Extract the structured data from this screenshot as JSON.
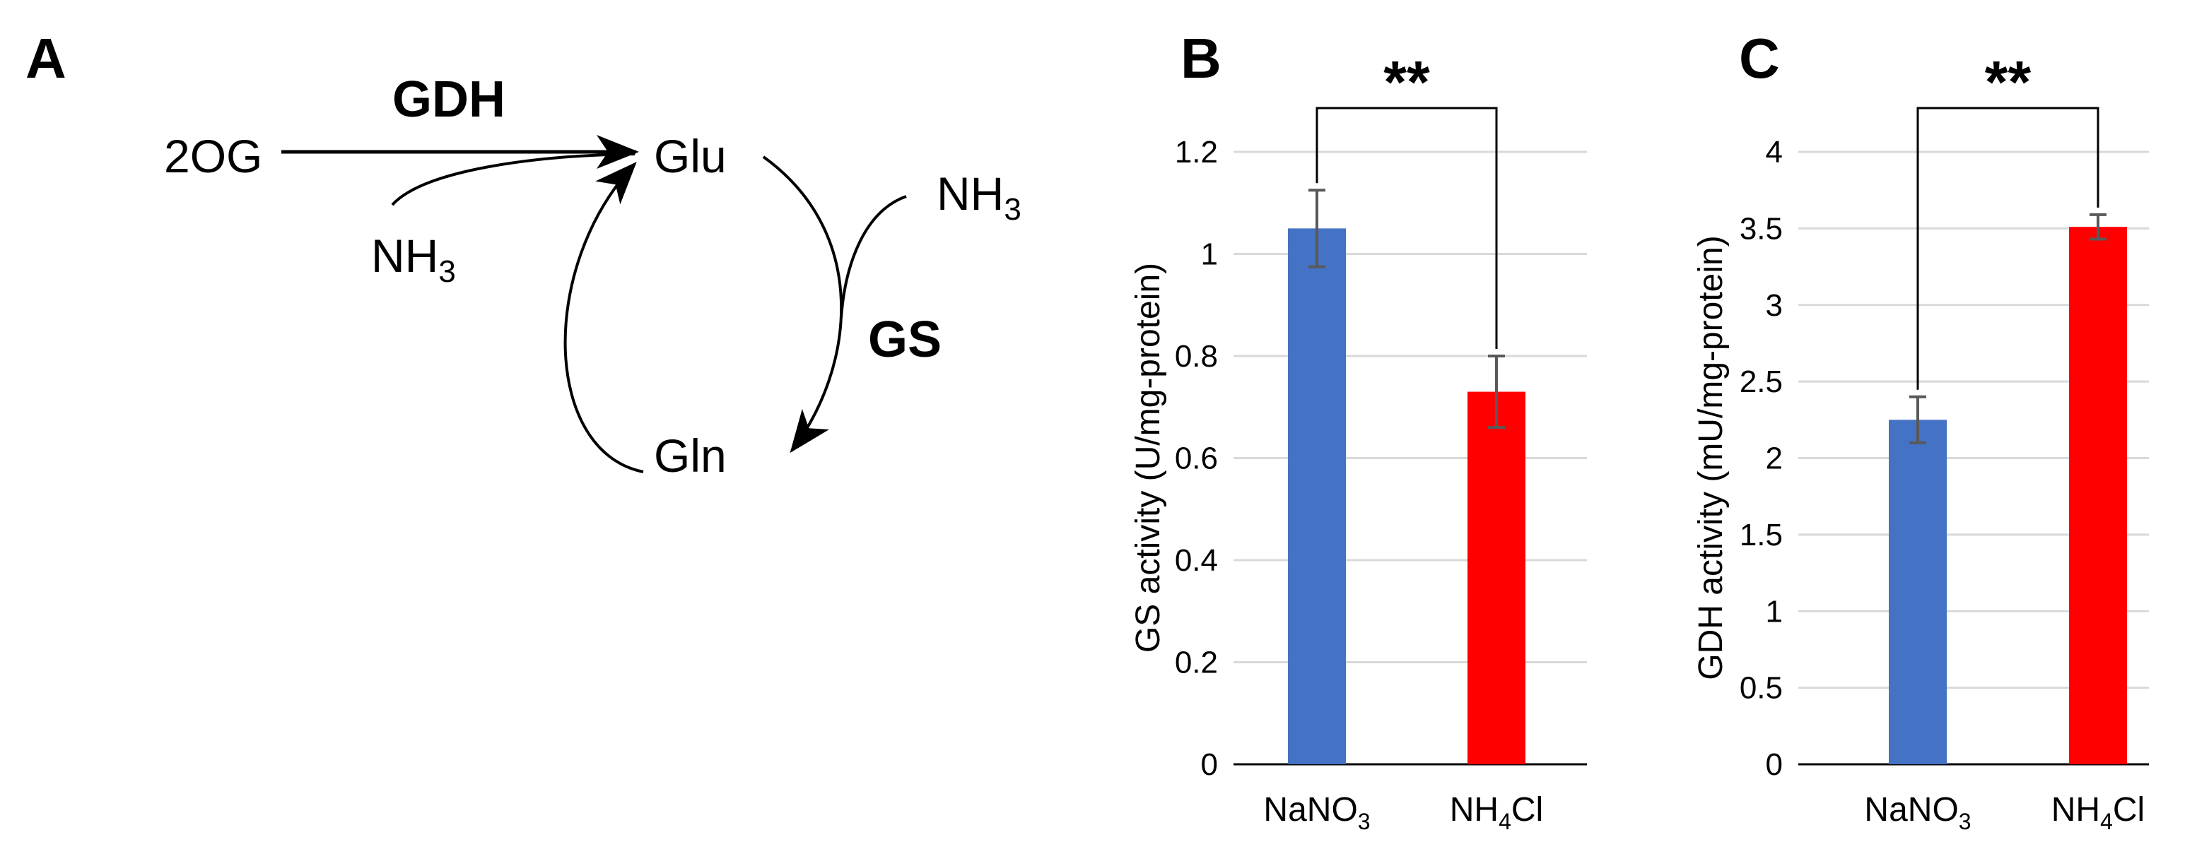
{
  "panel_a": {
    "letter": "A",
    "substrate": "2OG",
    "product": "Glu",
    "glutamine": "Gln",
    "ammonia_1": {
      "base": "NH",
      "sub": "3"
    },
    "ammonia_2": {
      "base": "NH",
      "sub": "3"
    },
    "enzyme_gdh": "GDH",
    "enzyme_gs": "GS"
  },
  "chart_data": [
    {
      "panel": "B",
      "type": "bar",
      "categories": [
        {
          "base": "NaNO",
          "sub": "3",
          "tail": ""
        },
        {
          "base": "NH",
          "sub": "4",
          "tail": "Cl"
        }
      ],
      "values": [
        1.05,
        0.73
      ],
      "errors": [
        0.075,
        0.07
      ],
      "colors": [
        "#4472C4",
        "#FF0000"
      ],
      "ylabel": "GS activity (U/mg-protein)",
      "ylim": [
        0,
        1.2
      ],
      "ticks": [
        0,
        0.2,
        0.4,
        0.6,
        0.8,
        1,
        1.2
      ],
      "tick_labels": [
        "0",
        "0.2",
        "0.4",
        "0.6",
        "0.8",
        "1",
        "1.2"
      ],
      "grid": true,
      "significance": "**"
    },
    {
      "panel": "C",
      "type": "bar",
      "categories": [
        {
          "base": "NaNO",
          "sub": "3",
          "tail": ""
        },
        {
          "base": "NH",
          "sub": "4",
          "tail": "Cl"
        }
      ],
      "values": [
        2.25,
        3.51
      ],
      "errors": [
        0.15,
        0.08
      ],
      "colors": [
        "#4472C4",
        "#FF0000"
      ],
      "ylabel": "GDH activity (mU/mg-protein)",
      "ylim": [
        0,
        4
      ],
      "ticks": [
        0,
        0.5,
        1,
        1.5,
        2,
        2.5,
        3,
        3.5,
        4
      ],
      "tick_labels": [
        "0",
        "0.5",
        "1",
        "1.5",
        "2",
        "2.5",
        "3",
        "3.5",
        "4"
      ],
      "grid": true,
      "significance": "**"
    }
  ]
}
